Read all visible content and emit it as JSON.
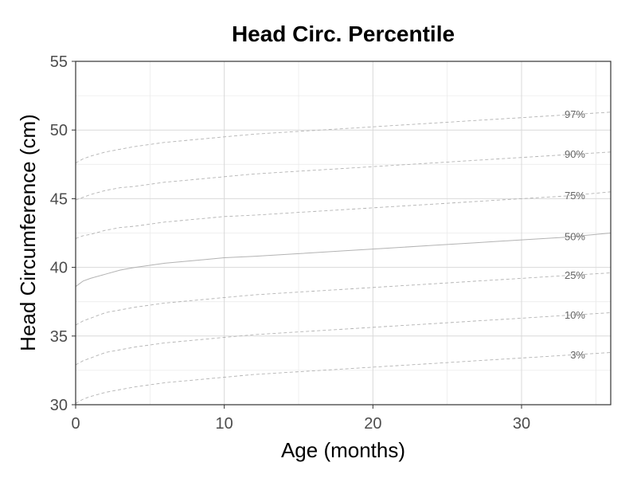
{
  "chart_data": {
    "type": "line",
    "title": "Head Circ. Percentile",
    "xlabel": "Age (months)",
    "ylabel": "Head Circumference (cm)",
    "xlim": [
      0,
      36
    ],
    "ylim": [
      30,
      55
    ],
    "x_ticks": [
      "0",
      "10",
      "20",
      "30"
    ],
    "y_ticks": [
      "30",
      "35",
      "40",
      "45",
      "50",
      "55"
    ],
    "grid": true,
    "x": [
      0,
      0.5,
      1,
      2,
      3,
      4,
      6,
      8,
      10,
      12,
      15,
      18,
      21,
      24,
      27,
      30,
      33,
      36
    ],
    "series": [
      {
        "name": "97%",
        "style": "dashed",
        "values": [
          47.6,
          47.9,
          48.1,
          48.4,
          48.6,
          48.8,
          49.1,
          49.3,
          49.5,
          49.7,
          49.9,
          50.1,
          50.3,
          50.5,
          50.7,
          50.9,
          51.1,
          51.3
        ]
      },
      {
        "name": "90%",
        "style": "dashed",
        "values": [
          44.9,
          45.1,
          45.3,
          45.6,
          45.8,
          45.9,
          46.2,
          46.4,
          46.6,
          46.8,
          47.0,
          47.2,
          47.4,
          47.6,
          47.8,
          48.0,
          48.2,
          48.4
        ]
      },
      {
        "name": "75%",
        "style": "dashed",
        "values": [
          42.1,
          42.3,
          42.4,
          42.7,
          42.9,
          43.0,
          43.3,
          43.5,
          43.7,
          43.8,
          44.0,
          44.2,
          44.4,
          44.6,
          44.8,
          45.0,
          45.2,
          45.5
        ]
      },
      {
        "name": "50%",
        "style": "solid",
        "values": [
          38.6,
          39.0,
          39.2,
          39.5,
          39.8,
          40.0,
          40.3,
          40.5,
          40.7,
          40.8,
          41.0,
          41.2,
          41.4,
          41.6,
          41.8,
          42.0,
          42.2,
          42.5
        ]
      },
      {
        "name": "25%",
        "style": "dashed",
        "values": [
          35.8,
          36.1,
          36.3,
          36.7,
          36.9,
          37.1,
          37.4,
          37.6,
          37.8,
          38.0,
          38.2,
          38.4,
          38.6,
          38.8,
          39.0,
          39.2,
          39.4,
          39.6
        ]
      },
      {
        "name": "10%",
        "style": "dashed",
        "values": [
          32.9,
          33.2,
          33.4,
          33.8,
          34.0,
          34.2,
          34.5,
          34.7,
          34.9,
          35.1,
          35.3,
          35.5,
          35.7,
          35.9,
          36.1,
          36.3,
          36.5,
          36.7
        ]
      },
      {
        "name": "3%",
        "style": "dashed",
        "values": [
          30.1,
          30.4,
          30.6,
          30.9,
          31.1,
          31.3,
          31.6,
          31.8,
          32.0,
          32.2,
          32.4,
          32.6,
          32.8,
          33.0,
          33.2,
          33.4,
          33.6,
          33.8
        ]
      }
    ],
    "colors": {
      "line": "#b3b3b3",
      "grid_major": "#d9d9d9",
      "grid_minor": "#ebebeb",
      "panel_border": "#333333",
      "label": "#666666"
    }
  }
}
